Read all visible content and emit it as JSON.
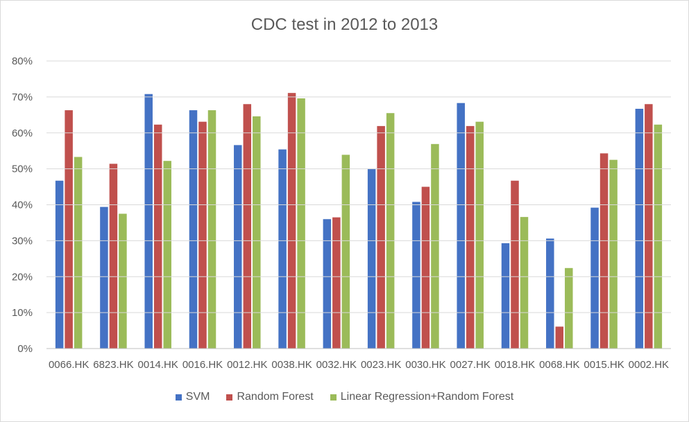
{
  "chart_data": {
    "type": "bar",
    "title": "CDC test in 2012 to 2013",
    "xlabel": "",
    "ylabel": "",
    "ylim": [
      0,
      80
    ],
    "yticks": [
      "0%",
      "10%",
      "20%",
      "30%",
      "40%",
      "50%",
      "60%",
      "70%",
      "80%"
    ],
    "grid": true,
    "legend_position": "bottom",
    "categories": [
      "0066.HK",
      "6823.HK",
      "0014.HK",
      "0016.HK",
      "0012.HK",
      "0038.HK",
      "0032.HK",
      "0023.HK",
      "0030.HK",
      "0027.HK",
      "0018.HK",
      "0068.HK",
      "0015.HK",
      "0002.HK"
    ],
    "series": [
      {
        "name": "SVM",
        "color": "#4472c4",
        "values": [
          46.7,
          39.4,
          70.8,
          66.3,
          56.6,
          55.4,
          36.0,
          50.0,
          40.8,
          68.3,
          29.3,
          30.6,
          39.2,
          66.7
        ]
      },
      {
        "name": "Random Forest",
        "color": "#c0504d",
        "values": [
          66.3,
          51.4,
          62.3,
          63.1,
          68.0,
          71.1,
          36.5,
          61.9,
          45.0,
          61.9,
          46.7,
          6.1,
          54.3,
          68.0
        ]
      },
      {
        "name": "Linear Regression+Random Forest",
        "color": "#9bbb59",
        "values": [
          53.3,
          37.5,
          52.2,
          66.3,
          64.6,
          69.6,
          53.9,
          65.5,
          56.9,
          63.1,
          36.6,
          22.4,
          52.5,
          62.3
        ]
      }
    ]
  }
}
